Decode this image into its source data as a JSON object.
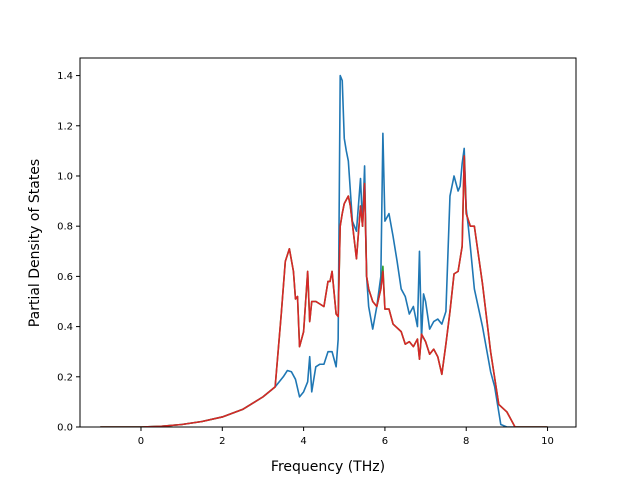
{
  "chart_data": {
    "type": "line",
    "title": "",
    "xlabel": "Frequency (THz)",
    "ylabel": "Partial Density of States",
    "xlim": [
      -1.5,
      10.7
    ],
    "ylim": [
      0,
      1.47
    ],
    "xticks": [
      0,
      2,
      4,
      6,
      8,
      10
    ],
    "yticks": [
      0.0,
      0.2,
      0.4,
      0.6,
      0.8,
      1.0,
      1.2,
      1.4
    ],
    "xtick_labels": [
      "0",
      "2",
      "4",
      "6",
      "8",
      "10"
    ],
    "ytick_labels": [
      "0.0",
      "0.2",
      "0.4",
      "0.6",
      "0.8",
      "1.0",
      "1.2",
      "1.4"
    ],
    "grid": false,
    "series": [
      {
        "color": "#1f77b4",
        "x": [
          -1.0,
          0.0,
          0.5,
          1.0,
          1.5,
          2.0,
          2.5,
          3.0,
          3.3,
          3.5,
          3.6,
          3.7,
          3.8,
          3.9,
          4.0,
          4.1,
          4.15,
          4.2,
          4.3,
          4.4,
          4.5,
          4.6,
          4.7,
          4.8,
          4.85,
          4.9,
          4.95,
          5.0,
          5.05,
          5.1,
          5.2,
          5.3,
          5.4,
          5.45,
          5.5,
          5.55,
          5.6,
          5.7,
          5.8,
          5.9,
          5.95,
          6.0,
          6.1,
          6.2,
          6.3,
          6.4,
          6.5,
          6.6,
          6.7,
          6.8,
          6.85,
          6.9,
          6.95,
          7.0,
          7.1,
          7.2,
          7.3,
          7.4,
          7.5,
          7.6,
          7.7,
          7.8,
          7.85,
          7.9,
          7.95,
          8.0,
          8.05,
          8.1,
          8.2,
          8.4,
          8.6,
          8.7,
          8.85,
          9.0,
          9.2,
          9.5,
          10.0
        ],
        "y": [
          0.0,
          0.0,
          0.003,
          0.01,
          0.022,
          0.04,
          0.07,
          0.12,
          0.16,
          0.2,
          0.225,
          0.22,
          0.19,
          0.12,
          0.14,
          0.18,
          0.28,
          0.14,
          0.24,
          0.25,
          0.25,
          0.3,
          0.3,
          0.24,
          0.35,
          1.4,
          1.38,
          1.15,
          1.1,
          1.06,
          0.82,
          0.78,
          0.99,
          0.8,
          1.04,
          0.6,
          0.48,
          0.39,
          0.48,
          0.6,
          1.17,
          0.82,
          0.85,
          0.76,
          0.66,
          0.55,
          0.52,
          0.45,
          0.48,
          0.4,
          0.7,
          0.35,
          0.53,
          0.5,
          0.39,
          0.42,
          0.43,
          0.41,
          0.46,
          0.92,
          1.0,
          0.94,
          0.96,
          1.05,
          1.11,
          0.87,
          0.8,
          0.72,
          0.55,
          0.4,
          0.22,
          0.16,
          0.01,
          0.0,
          0.0,
          0.0,
          0.0
        ]
      },
      {
        "color": "#2ca02c",
        "x": [
          -1.0,
          0.0,
          0.5,
          1.0,
          1.5,
          2.0,
          2.5,
          3.0,
          3.3,
          3.45,
          3.55,
          3.65,
          3.75,
          3.8,
          3.85,
          3.9,
          4.0,
          4.1,
          4.15,
          4.2,
          4.3,
          4.4,
          4.5,
          4.6,
          4.65,
          4.7,
          4.8,
          4.85,
          4.9,
          4.95,
          5.0,
          5.1,
          5.15,
          5.2,
          5.3,
          5.4,
          5.45,
          5.5,
          5.55,
          5.6,
          5.7,
          5.8,
          5.9,
          5.95,
          6.0,
          6.1,
          6.2,
          6.4,
          6.5,
          6.6,
          6.7,
          6.8,
          6.85,
          6.9,
          7.0,
          7.1,
          7.2,
          7.3,
          7.4,
          7.5,
          7.6,
          7.7,
          7.8,
          7.9,
          7.95,
          8.0,
          8.1,
          8.2,
          8.4,
          8.6,
          8.8,
          9.0,
          9.2,
          9.5,
          10.0
        ],
        "y": [
          0.0,
          0.0,
          0.003,
          0.01,
          0.022,
          0.04,
          0.07,
          0.12,
          0.16,
          0.45,
          0.66,
          0.71,
          0.62,
          0.51,
          0.52,
          0.32,
          0.38,
          0.62,
          0.42,
          0.5,
          0.5,
          0.49,
          0.48,
          0.58,
          0.58,
          0.62,
          0.45,
          0.44,
          0.8,
          0.85,
          0.89,
          0.92,
          0.88,
          0.81,
          0.67,
          0.88,
          0.8,
          0.97,
          0.6,
          0.55,
          0.5,
          0.48,
          0.55,
          0.64,
          0.47,
          0.47,
          0.41,
          0.38,
          0.33,
          0.34,
          0.32,
          0.35,
          0.27,
          0.37,
          0.34,
          0.29,
          0.31,
          0.28,
          0.21,
          0.33,
          0.46,
          0.61,
          0.62,
          0.72,
          1.08,
          0.85,
          0.8,
          0.8,
          0.57,
          0.3,
          0.09,
          0.06,
          0.0,
          0.0,
          0.0
        ]
      },
      {
        "color": "#d62728",
        "x": [
          -1.0,
          0.0,
          0.5,
          1.0,
          1.5,
          2.0,
          2.5,
          3.0,
          3.3,
          3.45,
          3.55,
          3.65,
          3.75,
          3.8,
          3.85,
          3.9,
          4.0,
          4.1,
          4.15,
          4.2,
          4.3,
          4.4,
          4.5,
          4.6,
          4.65,
          4.7,
          4.8,
          4.85,
          4.9,
          4.95,
          5.0,
          5.1,
          5.15,
          5.2,
          5.3,
          5.4,
          5.45,
          5.5,
          5.55,
          5.6,
          5.7,
          5.8,
          5.9,
          5.95,
          6.0,
          6.1,
          6.2,
          6.4,
          6.5,
          6.6,
          6.7,
          6.8,
          6.85,
          6.9,
          7.0,
          7.1,
          7.2,
          7.3,
          7.4,
          7.5,
          7.6,
          7.7,
          7.8,
          7.9,
          7.95,
          8.0,
          8.1,
          8.2,
          8.4,
          8.6,
          8.8,
          9.0,
          9.2,
          9.5,
          10.0
        ],
        "y": [
          0.0,
          0.0,
          0.003,
          0.01,
          0.022,
          0.04,
          0.07,
          0.12,
          0.16,
          0.45,
          0.66,
          0.71,
          0.62,
          0.51,
          0.52,
          0.32,
          0.38,
          0.62,
          0.42,
          0.5,
          0.5,
          0.49,
          0.48,
          0.58,
          0.58,
          0.62,
          0.45,
          0.44,
          0.8,
          0.85,
          0.89,
          0.92,
          0.88,
          0.81,
          0.67,
          0.88,
          0.8,
          0.97,
          0.6,
          0.55,
          0.5,
          0.48,
          0.55,
          0.62,
          0.47,
          0.47,
          0.41,
          0.38,
          0.33,
          0.34,
          0.32,
          0.35,
          0.27,
          0.37,
          0.34,
          0.29,
          0.31,
          0.28,
          0.21,
          0.33,
          0.46,
          0.61,
          0.62,
          0.72,
          1.08,
          0.85,
          0.8,
          0.8,
          0.57,
          0.3,
          0.09,
          0.06,
          0.0,
          0.0,
          0.0
        ]
      }
    ]
  }
}
